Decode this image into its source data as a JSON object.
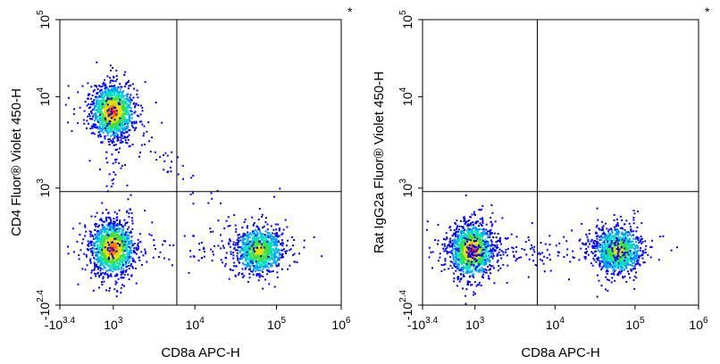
{
  "chart_data": [
    {
      "type": "scatter",
      "subtype": "flow-cytometry-density-dot-plot",
      "corner_mark": "*",
      "xlabel": "CD8a APC-H",
      "ylabel": "CD4  Fluor® Violet 450-H",
      "x_scale": "biexponential",
      "y_scale": "biexponential",
      "xlim": [
        -2512,
        1000000
      ],
      "ylim": [
        -251,
        100000
      ],
      "x_ticks": [
        {
          "base": "-10",
          "exp": "3.4",
          "value": -2512
        },
        {
          "base": "10",
          "exp": "3",
          "value": 1000
        },
        {
          "base": "10",
          "exp": "4",
          "value": 10000
        },
        {
          "base": "10",
          "exp": "5",
          "value": 100000
        },
        {
          "base": "10",
          "exp": "6",
          "value": 1000000
        }
      ],
      "y_ticks": [
        {
          "base": "-10",
          "exp": "2.4",
          "value": -251
        },
        {
          "base": "10",
          "exp": "3",
          "value": 1000
        },
        {
          "base": "10",
          "exp": "4",
          "value": 10000
        },
        {
          "base": "10",
          "exp": "5",
          "value": 100000
        }
      ],
      "gates": {
        "x": 6000,
        "y": 700
      },
      "populations": [
        {
          "x": 700,
          "y": 7000,
          "density": "high"
        },
        {
          "x": 700,
          "y": 50,
          "density": "high"
        },
        {
          "x": 60000,
          "y": 40,
          "density": "medium"
        }
      ],
      "color_scale": [
        "#0000ff",
        "#00a0ff",
        "#00e0c0",
        "#40e040",
        "#e0e000",
        "#ff8000",
        "#ff0000"
      ]
    },
    {
      "type": "scatter",
      "subtype": "flow-cytometry-density-dot-plot",
      "corner_mark": "*",
      "xlabel": "CD8a APC-H",
      "ylabel": "Rat IgG2a  Fluor® Violet 450-H",
      "x_scale": "biexponential",
      "y_scale": "biexponential",
      "xlim": [
        -2512,
        1000000
      ],
      "ylim": [
        -251,
        100000
      ],
      "x_ticks": [
        {
          "base": "-10",
          "exp": "3.4",
          "value": -2512
        },
        {
          "base": "10",
          "exp": "3",
          "value": 1000
        },
        {
          "base": "10",
          "exp": "4",
          "value": 10000
        },
        {
          "base": "10",
          "exp": "5",
          "value": 100000
        },
        {
          "base": "10",
          "exp": "6",
          "value": 1000000
        }
      ],
      "y_ticks": [
        {
          "base": "-10",
          "exp": "2.4",
          "value": -251
        },
        {
          "base": "10",
          "exp": "3",
          "value": 1000
        },
        {
          "base": "10",
          "exp": "4",
          "value": 10000
        },
        {
          "base": "10",
          "exp": "5",
          "value": 100000
        }
      ],
      "gates": {
        "x": 6000,
        "y": 700
      },
      "populations": [
        {
          "x": 400,
          "y": 40,
          "density": "high"
        },
        {
          "x": 60000,
          "y": 40,
          "density": "medium"
        }
      ],
      "color_scale": [
        "#0000ff",
        "#00a0ff",
        "#00e0c0",
        "#40e040",
        "#e0e000",
        "#ff8000",
        "#ff0000"
      ]
    }
  ]
}
